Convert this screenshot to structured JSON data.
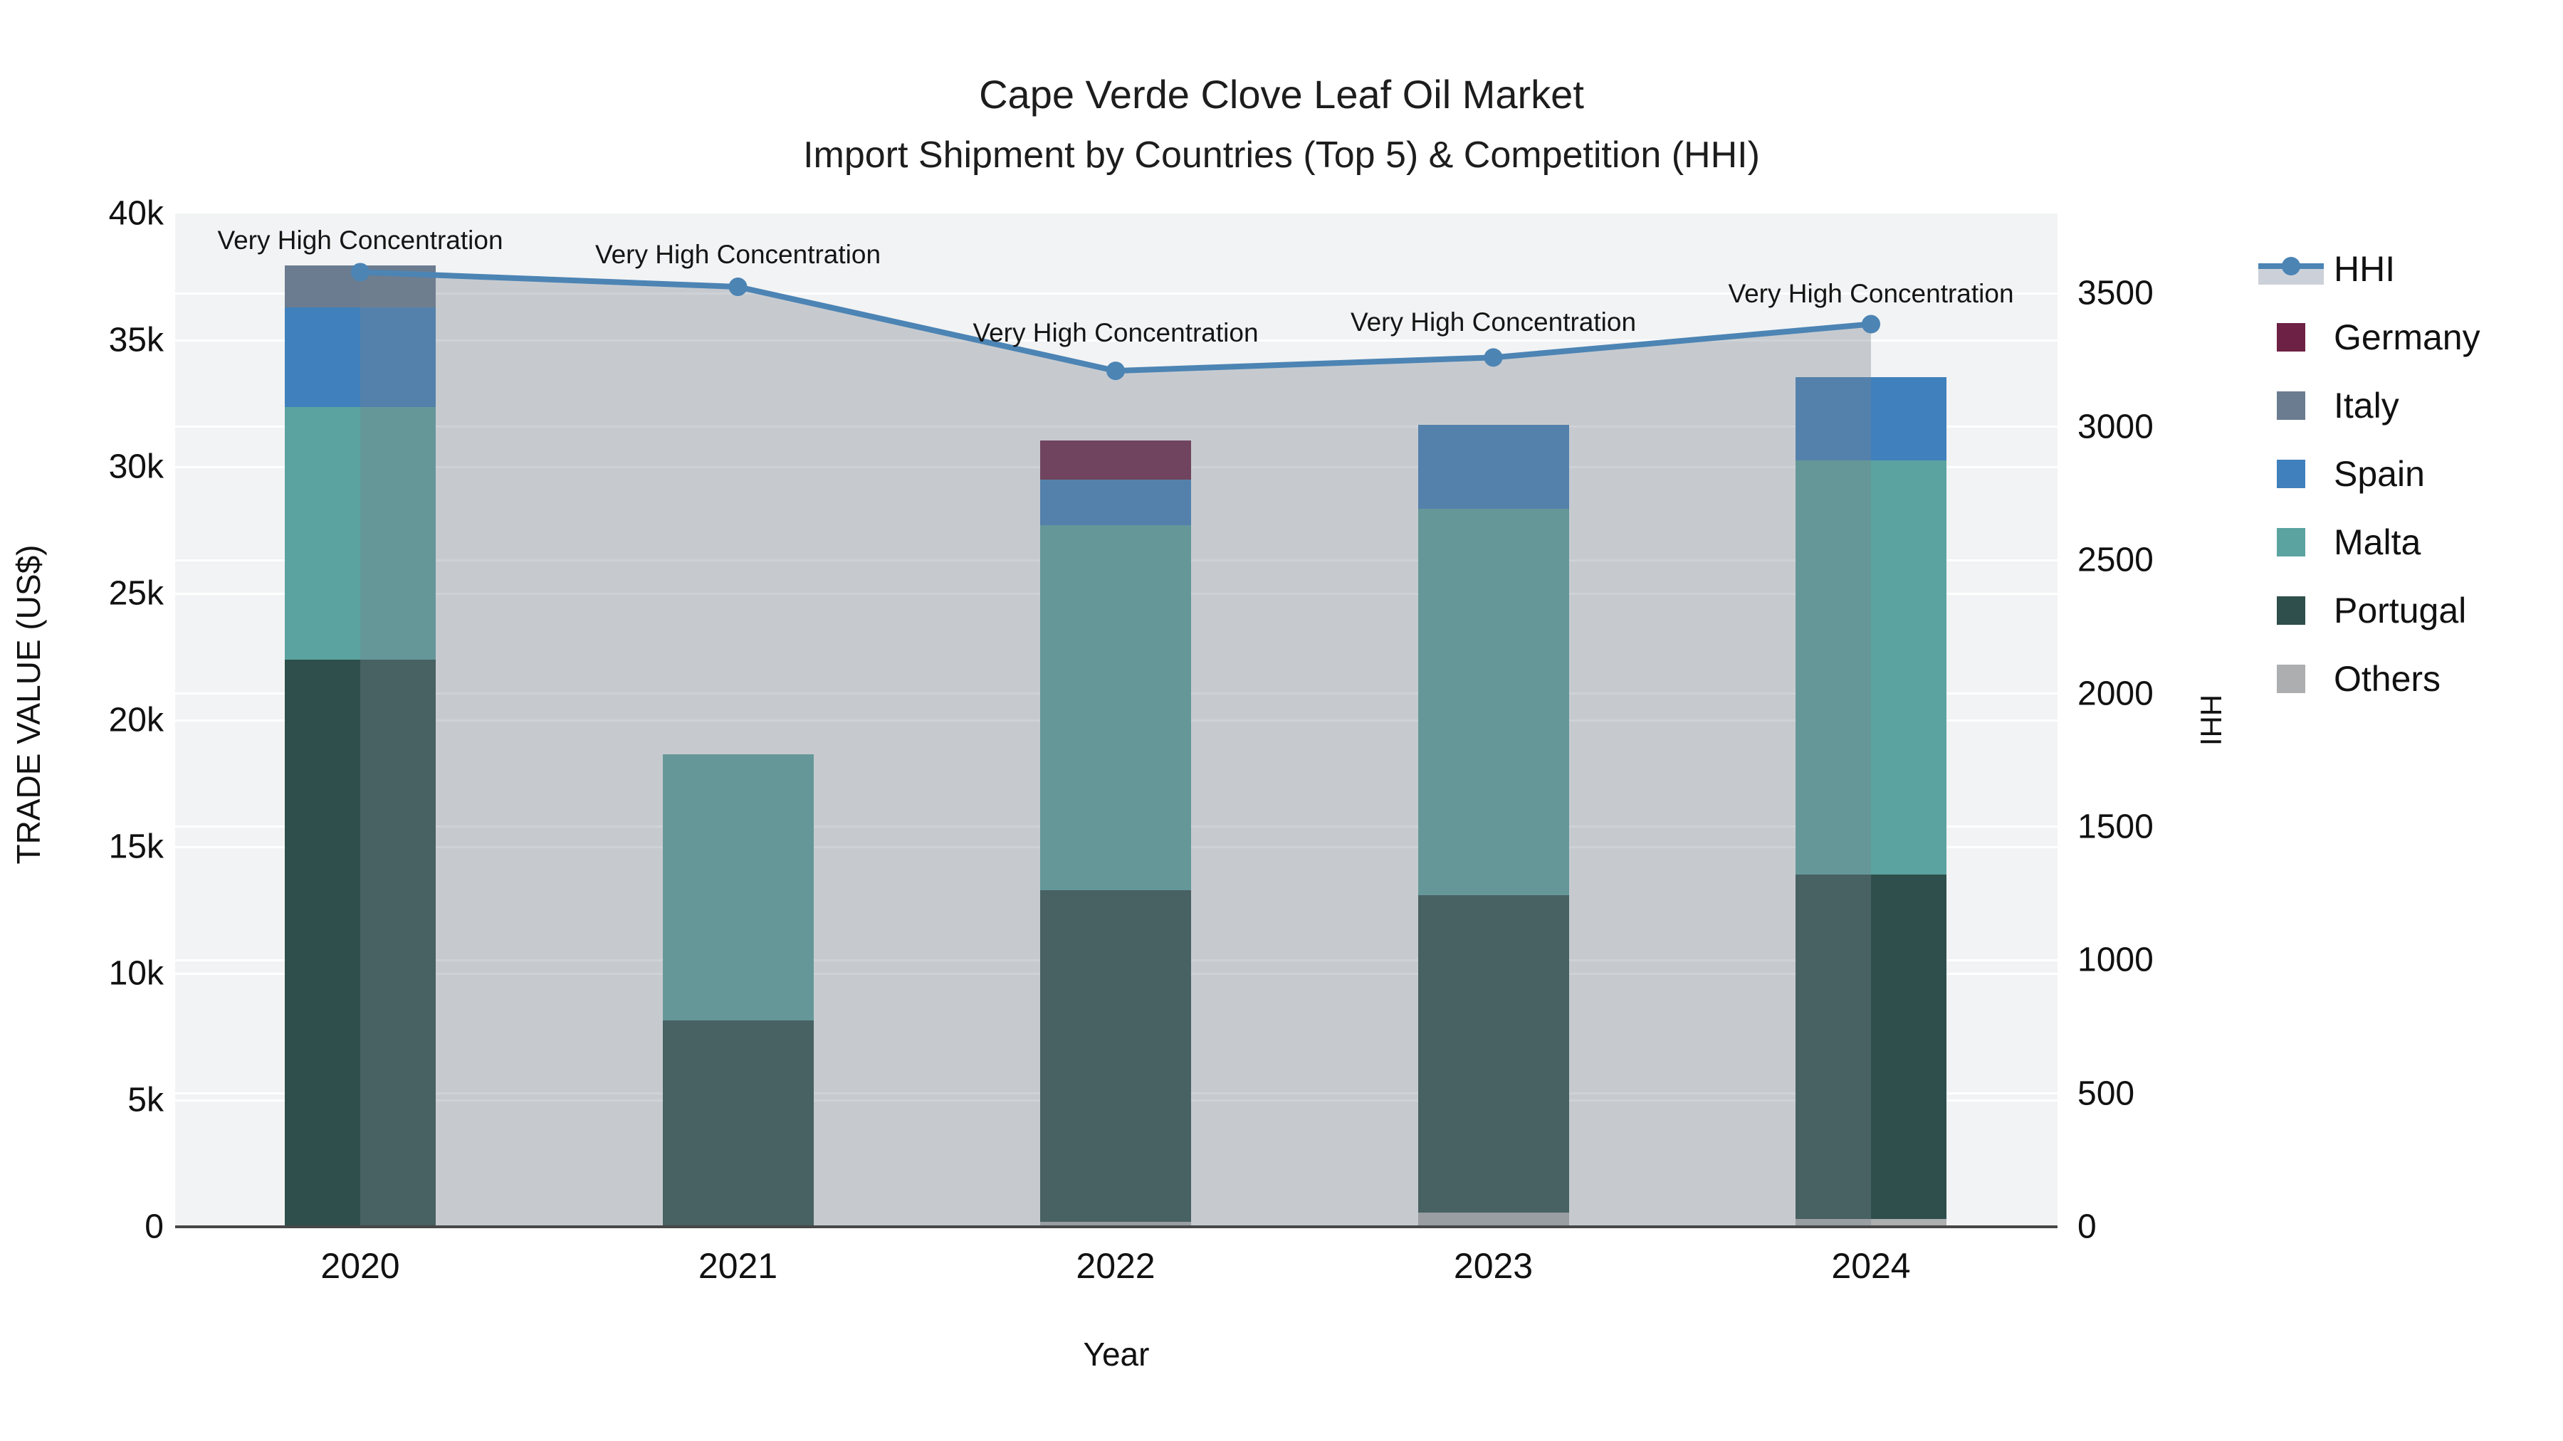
{
  "title": {
    "line1": "Cape Verde Clove Leaf Oil Market",
    "line2": "Import Shipment by Countries (Top 5) & Competition (HHI)"
  },
  "axes": {
    "left": {
      "title": "TRADE VALUE (US$)",
      "ticks": [
        {
          "label": "0",
          "value": 0
        },
        {
          "label": "5k",
          "value": 5000
        },
        {
          "label": "10k",
          "value": 10000
        },
        {
          "label": "15k",
          "value": 15000
        },
        {
          "label": "20k",
          "value": 20000
        },
        {
          "label": "25k",
          "value": 25000
        },
        {
          "label": "30k",
          "value": 30000
        },
        {
          "label": "35k",
          "value": 35000
        },
        {
          "label": "40k",
          "value": 40000
        }
      ]
    },
    "right": {
      "title": "HHI",
      "ticks": [
        {
          "label": "0",
          "value": 0
        },
        {
          "label": "500",
          "value": 500
        },
        {
          "label": "1000",
          "value": 1000
        },
        {
          "label": "1500",
          "value": 1500
        },
        {
          "label": "2000",
          "value": 2000
        },
        {
          "label": "2500",
          "value": 2500
        },
        {
          "label": "3000",
          "value": 3000
        },
        {
          "label": "3500",
          "value": 3500
        }
      ]
    },
    "x": {
      "title": "Year"
    }
  },
  "legend": {
    "items": [
      {
        "label": "HHI",
        "type": "line",
        "color": "#4c84b4"
      },
      {
        "label": "Germany",
        "type": "swatch",
        "color": "#6d2144"
      },
      {
        "label": "Italy",
        "type": "swatch",
        "color": "#6b7c90"
      },
      {
        "label": "Spain",
        "type": "swatch",
        "color": "#4080bc"
      },
      {
        "label": "Malta",
        "type": "swatch",
        "color": "#5ba3a0"
      },
      {
        "label": "Portugal",
        "type": "swatch",
        "color": "#2e4f4b"
      },
      {
        "label": "Others",
        "type": "swatch",
        "color": "#acaeb0"
      }
    ]
  },
  "annotation_text": "Very High Concentration",
  "chart_data": {
    "type": "bar",
    "subtype": "stacked-bars-with-line-overlay",
    "title": "Cape Verde Clove Leaf Oil Market — Import Shipment by Countries (Top 5) & Competition (HHI)",
    "xlabel": "Year",
    "ylabel_left": "TRADE VALUE (US$)",
    "ylabel_right": "HHI",
    "ylim_left": [
      0,
      40000
    ],
    "ylim_right": [
      0,
      3800
    ],
    "grid": true,
    "legend_position": "right",
    "categories": [
      "2020",
      "2021",
      "2022",
      "2023",
      "2024"
    ],
    "series": [
      {
        "name": "Others",
        "color": "#acaeb0",
        "values": [
          0,
          0,
          200,
          550,
          300
        ]
      },
      {
        "name": "Portugal",
        "color": "#2e4f4b",
        "values": [
          22400,
          8150,
          13100,
          12550,
          13600
        ]
      },
      {
        "name": "Malta",
        "color": "#5ba3a0",
        "values": [
          9950,
          10500,
          14400,
          15250,
          16350
        ]
      },
      {
        "name": "Spain",
        "color": "#4080bc",
        "values": [
          3950,
          0,
          1800,
          3300,
          3300
        ]
      },
      {
        "name": "Italy",
        "color": "#6b7c90",
        "values": [
          1650,
          0,
          0,
          0,
          0
        ]
      },
      {
        "name": "Germany",
        "color": "#6d2144",
        "values": [
          0,
          0,
          1550,
          0,
          0
        ]
      }
    ],
    "line_series": {
      "name": "HHI",
      "color": "#4c84b4",
      "fill_color": "rgba(120,130,142,0.36)",
      "values": [
        3580,
        3525,
        3210,
        3260,
        3385
      ]
    },
    "annotations": [
      {
        "text": "Very High Concentration",
        "category": "2020"
      },
      {
        "text": "Very High Concentration",
        "category": "2021"
      },
      {
        "text": "Very High Concentration",
        "category": "2022"
      },
      {
        "text": "Very High Concentration",
        "category": "2023"
      },
      {
        "text": "Very High Concentration",
        "category": "2024"
      }
    ]
  }
}
